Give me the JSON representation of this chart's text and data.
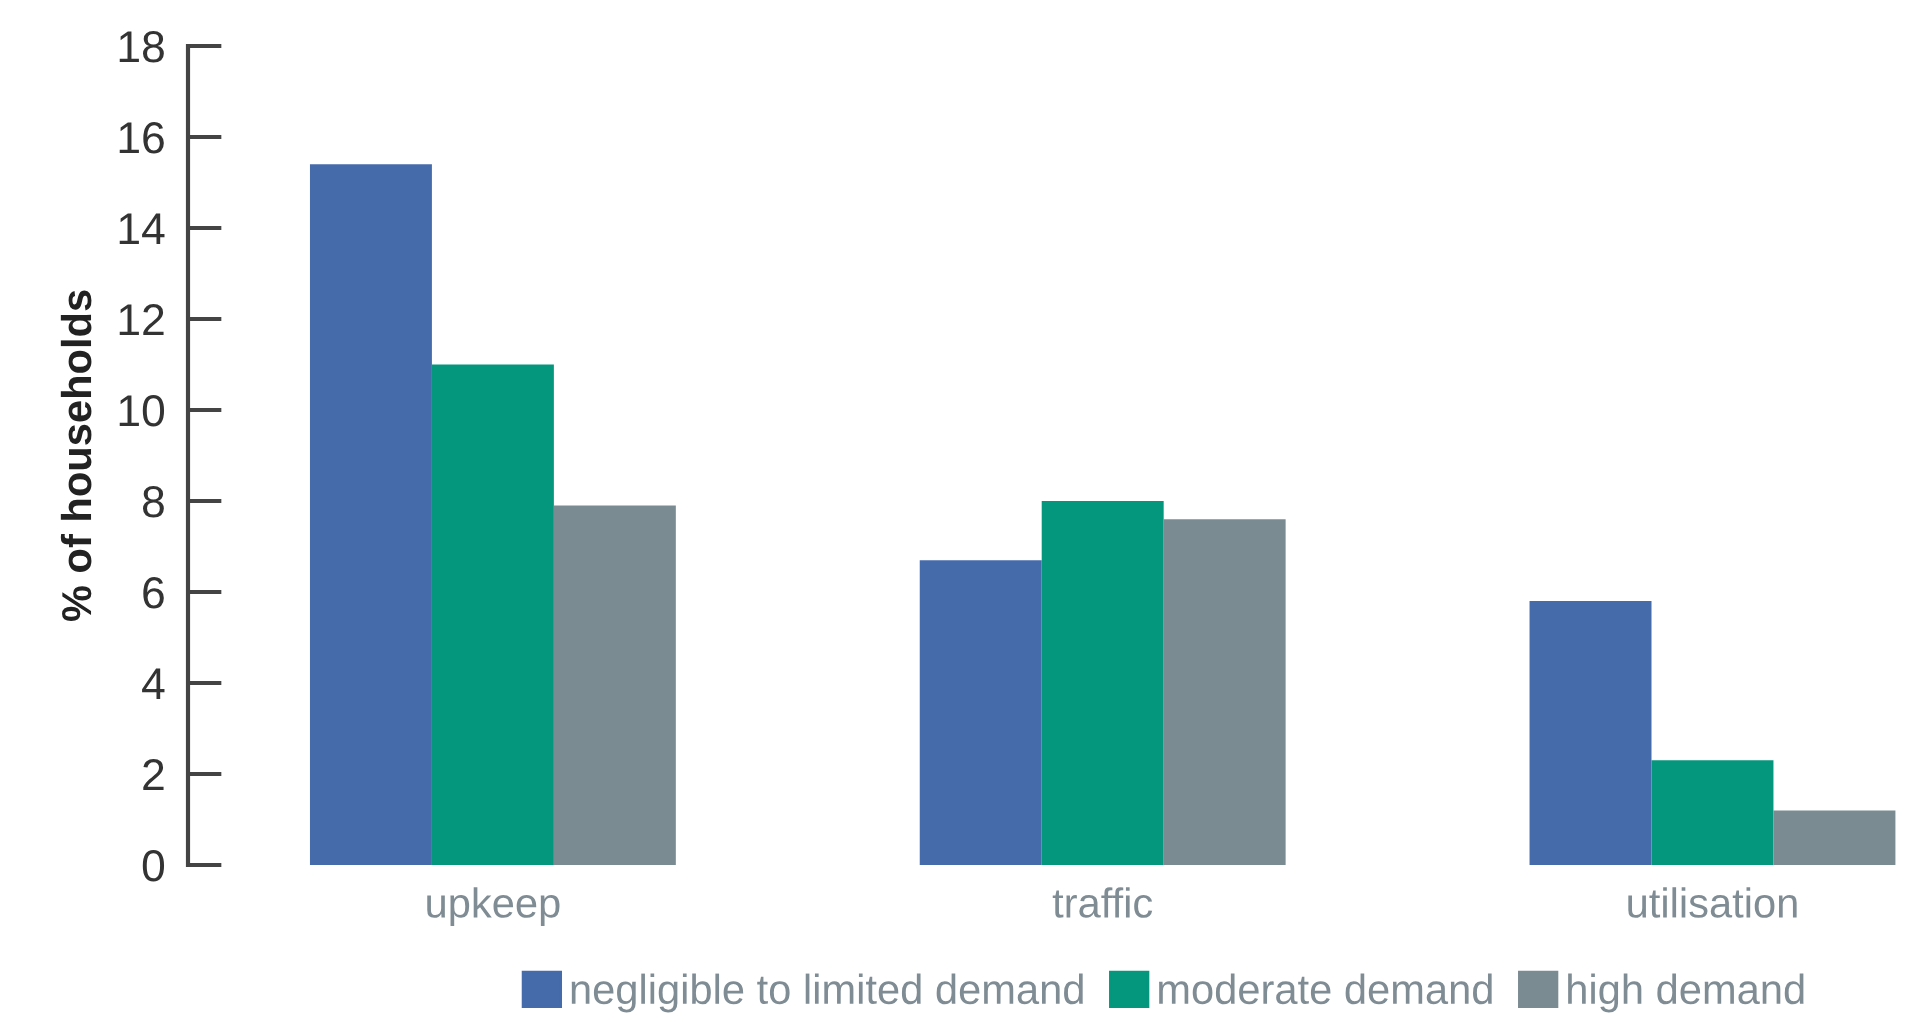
{
  "chart_data": {
    "type": "bar",
    "ylabel": "% of households",
    "categories": [
      "upkeep",
      "traffic",
      "utilisation"
    ],
    "series": [
      {
        "name": "negligible to limited demand",
        "color": "#456bab",
        "values": [
          15.4,
          6.7,
          5.8
        ]
      },
      {
        "name": "moderate demand",
        "color": "#05967e",
        "values": [
          11.0,
          8.0,
          2.3
        ]
      },
      {
        "name": "high demand",
        "color": "#7b8b92",
        "values": [
          7.9,
          7.6,
          1.2
        ]
      }
    ],
    "ylim": [
      0,
      18
    ],
    "yticks": [
      0,
      2,
      4,
      6,
      8,
      10,
      12,
      14,
      16,
      18
    ],
    "grid": false,
    "legend": "bottom"
  }
}
